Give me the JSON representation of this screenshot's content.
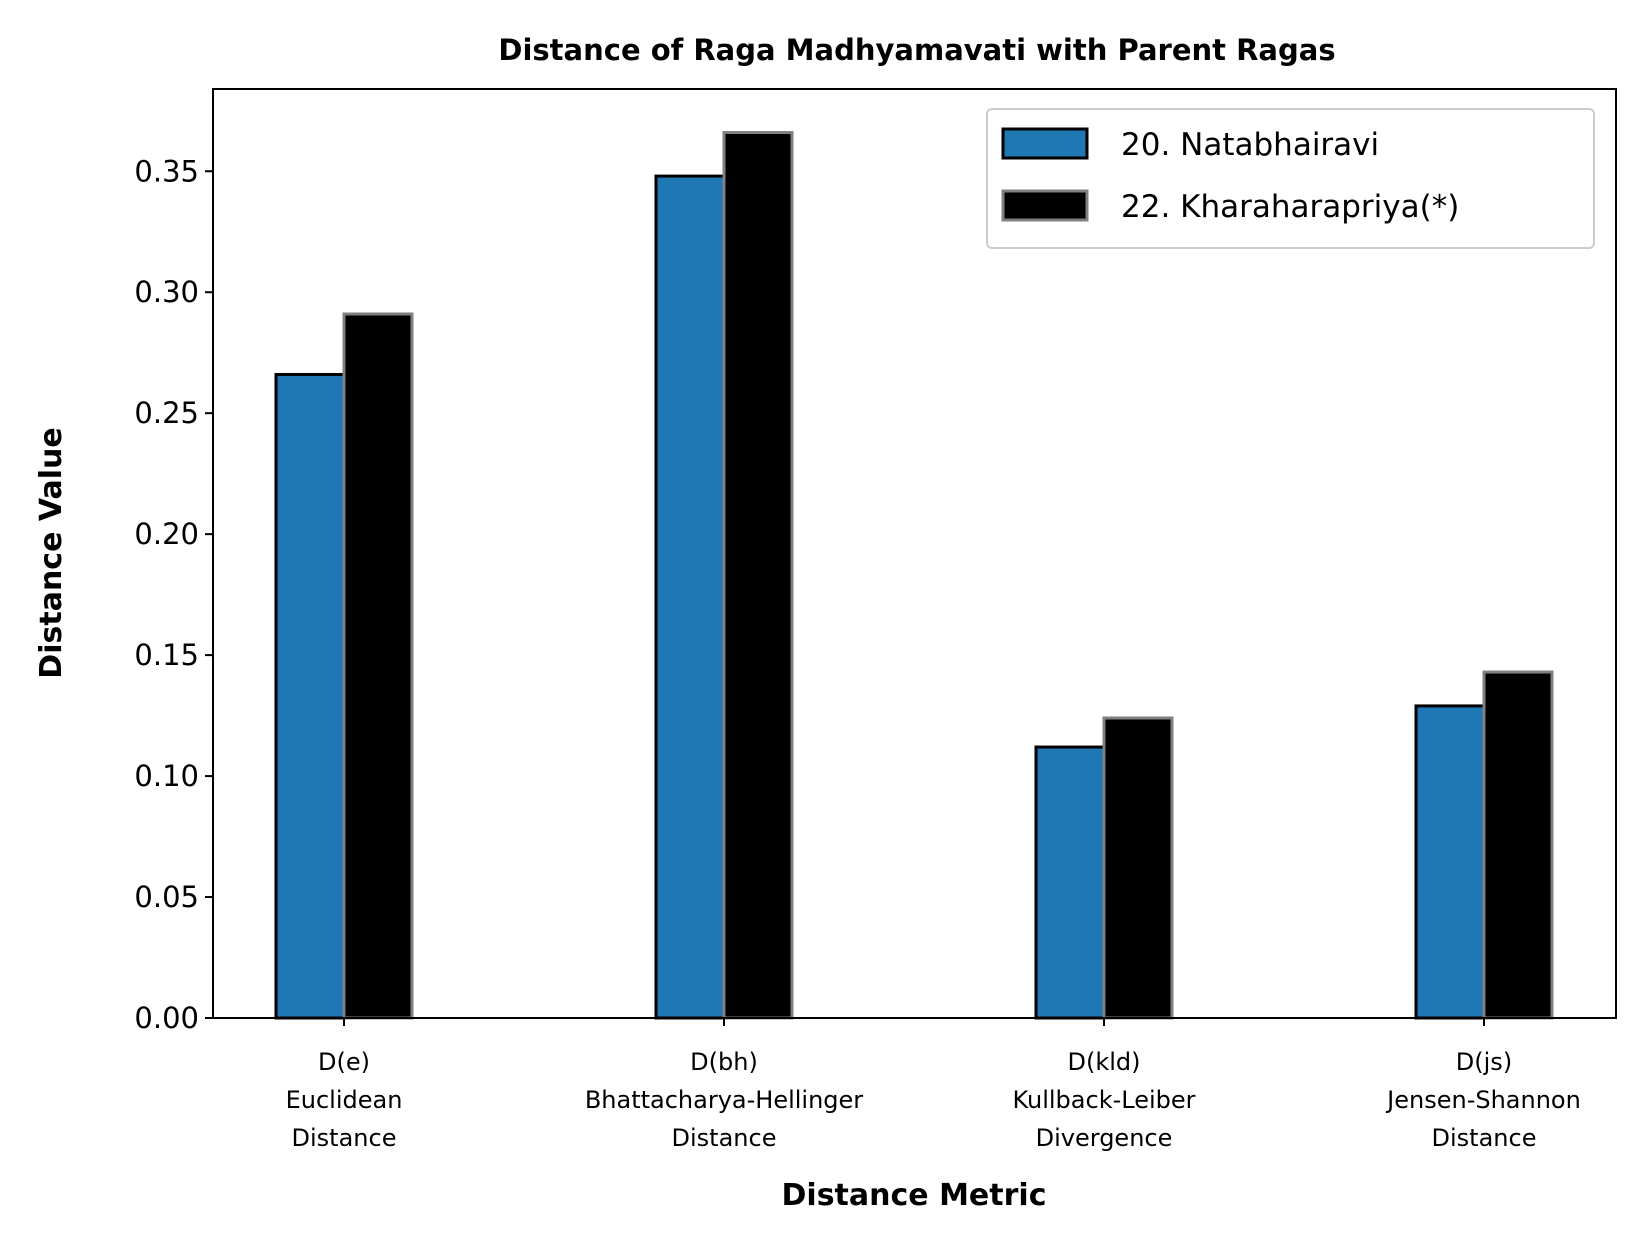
{
  "chart_data": {
    "type": "bar",
    "title": "Distance of Raga Madhyamavati with Parent Ragas",
    "xlabel": "Distance Metric",
    "ylabel": "Distance Value",
    "ylim": [
      0,
      0.384
    ],
    "yticks": [
      "0.00",
      "0.05",
      "0.10",
      "0.15",
      "0.20",
      "0.25",
      "0.30",
      "0.35"
    ],
    "categories": [
      [
        "D(e)",
        "Euclidean",
        "Distance"
      ],
      [
        "D(bh)",
        "Bhattacharya-Hellinger",
        "Distance"
      ],
      [
        "D(kld)",
        "Kullback-Leiber",
        "Divergence"
      ],
      [
        "D(js)",
        "Jensen-Shannon",
        "Distance"
      ]
    ],
    "series": [
      {
        "name": "20. Natabhairavi",
        "color": "#1f77b4",
        "edgecolor": "#000000",
        "values": [
          0.266,
          0.348,
          0.112,
          0.129
        ]
      },
      {
        "name": "22. Kharaharapriya(*)",
        "color": "#000000",
        "edgecolor": "#808080",
        "values": [
          0.291,
          0.366,
          0.124,
          0.143
        ]
      }
    ],
    "legend_position": "top-right",
    "grid": false
  }
}
